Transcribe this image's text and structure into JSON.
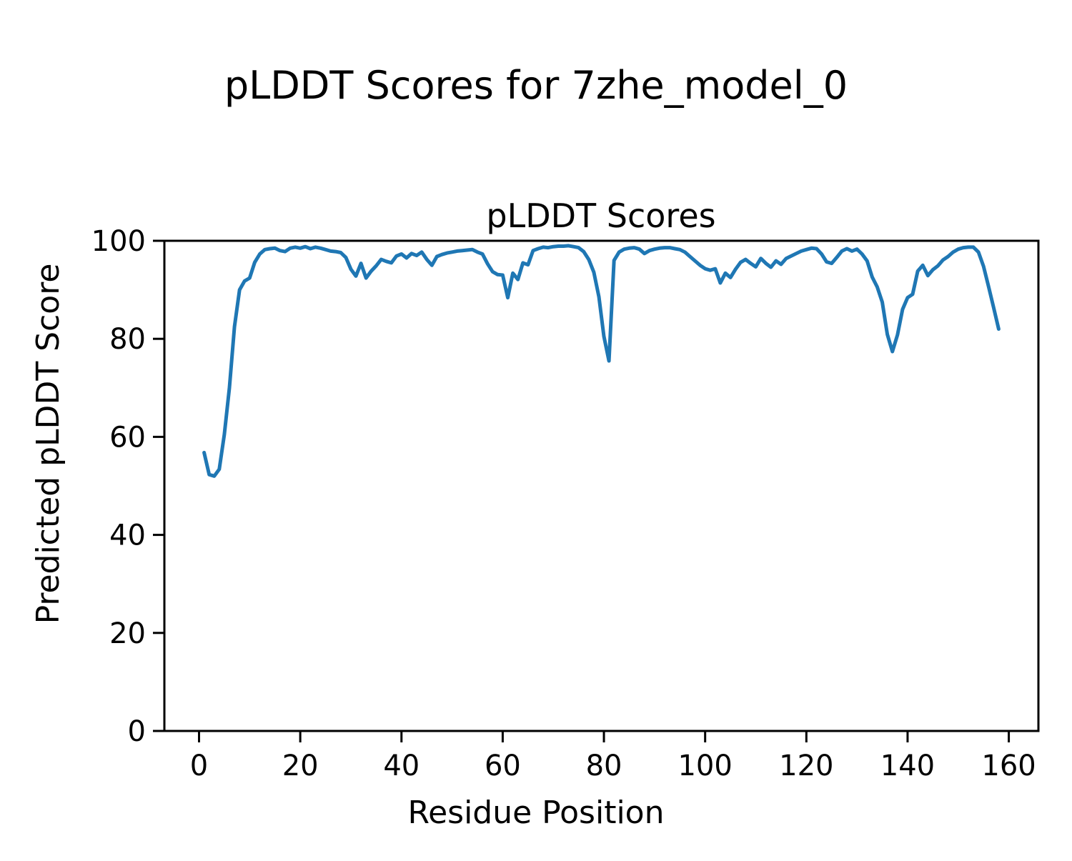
{
  "chart_data": {
    "type": "line",
    "suptitle": "pLDDT Scores for 7zhe_model_0",
    "title": "pLDDT Scores",
    "xlabel": "Residue Position",
    "ylabel": "Predicted pLDDT Score",
    "xlim": [
      -6.85,
      165.85
    ],
    "ylim": [
      0,
      100
    ],
    "xticks": [
      0,
      20,
      40,
      60,
      80,
      100,
      120,
      140,
      160
    ],
    "yticks": [
      0,
      20,
      40,
      60,
      80,
      100
    ],
    "grid": false,
    "x_start": 1,
    "x_step": 1,
    "series": [
      {
        "name": "pLDDT",
        "color": "#1f77b4",
        "line_width": 5,
        "values": [
          56.8,
          52.3,
          52.0,
          53.4,
          60.5,
          70.0,
          82.5,
          90.0,
          91.8,
          92.4,
          95.6,
          97.3,
          98.2,
          98.4,
          98.5,
          98.0,
          97.8,
          98.5,
          98.7,
          98.5,
          98.8,
          98.4,
          98.7,
          98.5,
          98.2,
          97.9,
          97.8,
          97.6,
          96.6,
          94.2,
          92.8,
          95.4,
          92.4,
          93.8,
          94.9,
          96.2,
          95.8,
          95.5,
          96.9,
          97.3,
          96.5,
          97.4,
          97.0,
          97.7,
          96.2,
          95.0,
          96.8,
          97.2,
          97.5,
          97.7,
          97.9,
          98.0,
          98.1,
          98.2,
          97.7,
          97.3,
          95.3,
          93.7,
          93.1,
          93.0,
          88.4,
          93.4,
          92.1,
          95.5,
          95.1,
          98.0,
          98.4,
          98.7,
          98.6,
          98.8,
          98.9,
          98.9,
          99.0,
          98.8,
          98.6,
          97.8,
          96.2,
          93.6,
          88.6,
          80.5,
          75.5,
          96.0,
          97.7,
          98.3,
          98.5,
          98.6,
          98.3,
          97.4,
          98.0,
          98.3,
          98.5,
          98.6,
          98.6,
          98.4,
          98.2,
          97.7,
          96.8,
          95.9,
          95.0,
          94.3,
          94.0,
          94.3,
          91.4,
          93.4,
          92.5,
          94.2,
          95.6,
          96.2,
          95.4,
          94.7,
          96.4,
          95.4,
          94.6,
          95.9,
          95.2,
          96.4,
          96.9,
          97.4,
          97.9,
          98.2,
          98.5,
          98.4,
          97.3,
          95.7,
          95.4,
          96.6,
          97.9,
          98.4,
          97.9,
          98.3,
          97.3,
          95.9,
          92.6,
          90.6,
          87.5,
          80.9,
          77.4,
          80.8,
          86.0,
          88.4,
          89.1,
          93.8,
          95.0,
          92.9,
          94.1,
          94.9,
          96.1,
          96.8,
          97.7,
          98.3,
          98.6,
          98.7,
          98.7,
          97.7,
          94.8,
          90.7,
          86.4,
          82.0
        ]
      }
    ]
  }
}
